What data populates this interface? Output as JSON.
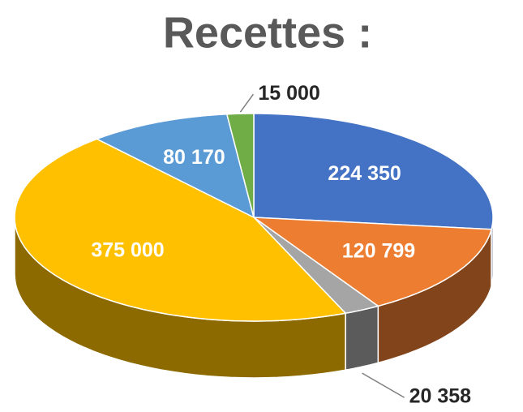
{
  "chart_data": {
    "type": "pie3d",
    "title": "Recettes :",
    "categories": [
      null,
      null,
      null,
      null,
      null,
      null
    ],
    "values": [
      224350,
      120799,
      20358,
      375000,
      80170,
      15000
    ],
    "value_labels": [
      "224 350",
      "120 799",
      "20 358",
      "375 000",
      "80 170",
      "15 000"
    ],
    "colors": [
      "#4472c4",
      "#ed7d31",
      "#a5a5a5",
      "#ffc000",
      "#5b9bd5",
      "#70ad47"
    ]
  }
}
